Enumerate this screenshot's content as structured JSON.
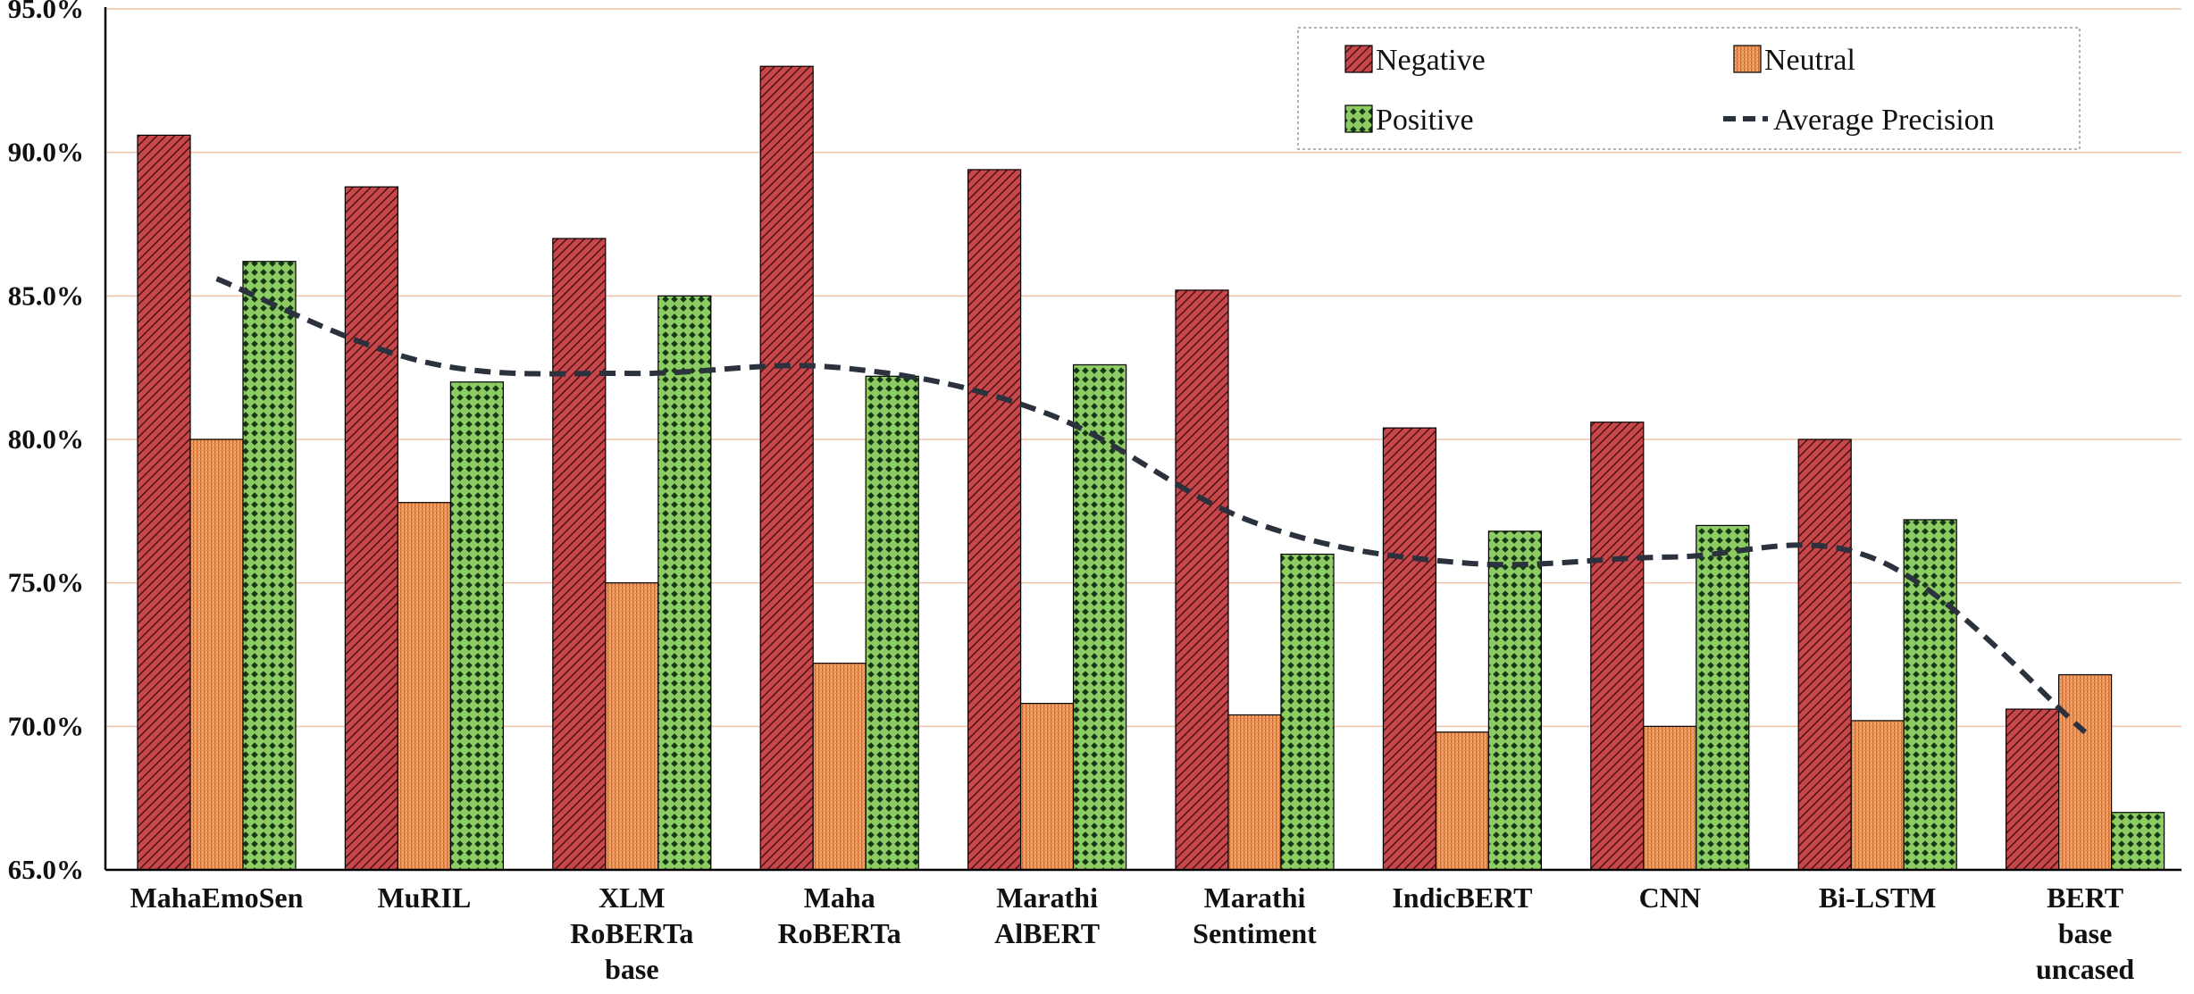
{
  "chart_data": {
    "type": "bar",
    "title": "",
    "xlabel": "",
    "ylabel": "",
    "ylim": [
      0.65,
      0.95
    ],
    "yticks": [
      0.65,
      0.7,
      0.75,
      0.8,
      0.85,
      0.9,
      0.95
    ],
    "ytick_labels": [
      "65.0%",
      "70.0%",
      "75.0%",
      "80.0%",
      "85.0%",
      "90.0%",
      "95.0%"
    ],
    "grid": "horizontal",
    "legend_position": "top-right",
    "categories": [
      [
        "MahaEmoSen"
      ],
      [
        "MuRIL"
      ],
      [
        "XLM",
        "RoBERTa",
        "base"
      ],
      [
        "Maha",
        "RoBERTa"
      ],
      [
        "Marathi",
        "AlBERT"
      ],
      [
        "Marathi",
        "Sentiment"
      ],
      [
        "IndicBERT"
      ],
      [
        "CNN"
      ],
      [
        "Bi-LSTM"
      ],
      [
        "BERT",
        "base",
        "uncased"
      ]
    ],
    "series": [
      {
        "name": "Negative",
        "kind": "bar",
        "color": "#c8474a",
        "values": [
          0.906,
          0.888,
          0.87,
          0.93,
          0.894,
          0.852,
          0.804,
          0.806,
          0.8,
          0.706
        ]
      },
      {
        "name": "Neutral",
        "kind": "bar",
        "color": "#f4a36b",
        "values": [
          0.8,
          0.778,
          0.75,
          0.722,
          0.708,
          0.704,
          0.698,
          0.7,
          0.702,
          0.718
        ]
      },
      {
        "name": "Positive",
        "kind": "bar",
        "color": "#8ccc62",
        "values": [
          0.862,
          0.82,
          0.85,
          0.822,
          0.826,
          0.76,
          0.768,
          0.77,
          0.772,
          0.67
        ]
      },
      {
        "name": "Average Precision",
        "kind": "line",
        "color": "#2b313d",
        "dashed": true,
        "values": [
          0.856,
          0.827,
          0.823,
          0.825,
          0.809,
          0.771,
          0.757,
          0.759,
          0.758,
          0.698
        ]
      }
    ]
  }
}
